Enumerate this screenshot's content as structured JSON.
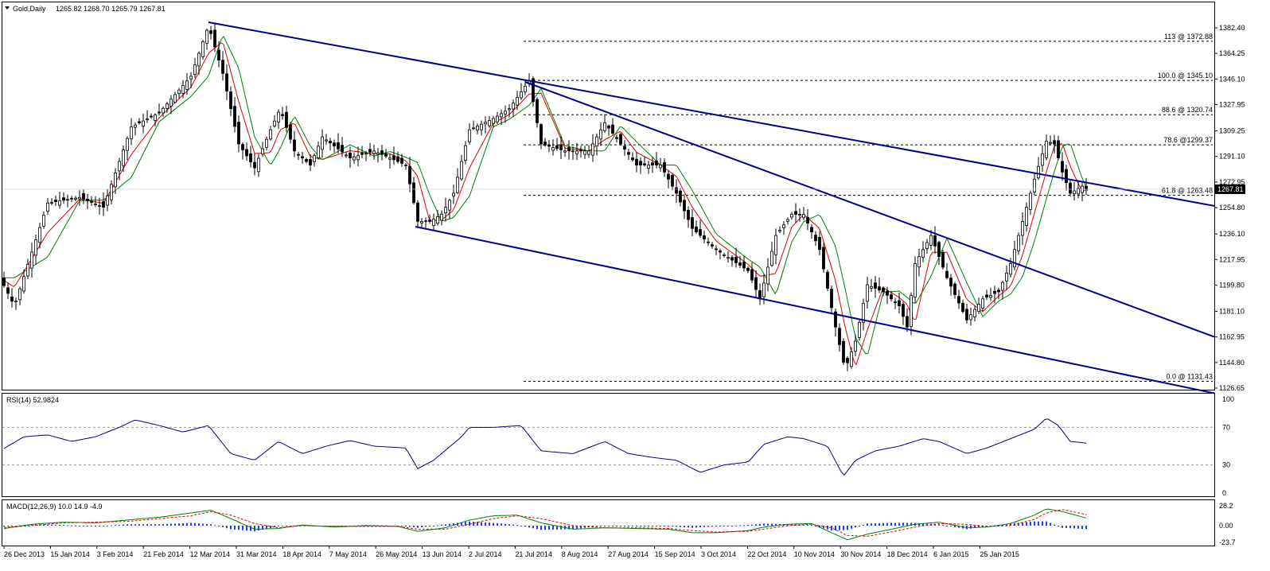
{
  "header": {
    "symbol_label": "Gold,Daily",
    "ohlc_label": "1265.82 1268.70 1265.79 1267.81"
  },
  "rsi_header": "RSI(14) 52.9824",
  "macd_header": "MACD(12,26,9) 10.0 14.9 -4.9",
  "chart_data": {
    "type": "candlestick",
    "price_axis": {
      "ticks": [
        "1382.40",
        "1364.25",
        "1346.10",
        "1327.95",
        "1309.25",
        "1291.10",
        "1272.95",
        "1254.80",
        "1236.10",
        "1217.95",
        "1199.80",
        "1181.10",
        "1162.95",
        "1144.80",
        "1126.65"
      ],
      "range": [
        1124,
        1390
      ]
    },
    "current_price": "1267.81",
    "rsi_axis": {
      "ticks": [
        "100",
        "70",
        "30",
        "0"
      ],
      "levels": [
        70,
        30
      ]
    },
    "macd_axis": {
      "ticks": [
        "28.2",
        "0.00",
        "-23.7"
      ],
      "range": [
        -23.7,
        28.2
      ]
    },
    "date_ticks": [
      "26 Dec 2013",
      "15 Jan 2014",
      "3 Feb 2014",
      "21 Feb 2014",
      "12 Mar 2014",
      "31 Mar 2014",
      "18 Apr 2014",
      "7 May 2014",
      "26 May 2014",
      "13 Jun 2014",
      "2 Jul 2014",
      "21 Jul 2014",
      "8 Aug 2014",
      "27 Aug 2014",
      "15 Sep 2014",
      "3 Oct 2014",
      "22 Oct 2014",
      "10 Nov 2014",
      "30 Nov 2014",
      "18 Dec 2014",
      "6 Jan 2015",
      "25 Jan 2015"
    ],
    "fib_levels": [
      {
        "label": "113 @ 1372.88",
        "price": 1372.88
      },
      {
        "label": "100.0 @ 1345.10",
        "price": 1345.1
      },
      {
        "label": "88.6 @ 1320.74",
        "price": 1320.74
      },
      {
        "label": "78.6 @1299.37",
        "price": 1299.37
      },
      {
        "label": "61.8 @ 1263.48",
        "price": 1263.48
      },
      {
        "label": "0.0 @ 1131.43",
        "price": 1131.43
      }
    ],
    "trendlines": [
      {
        "from": [
          12,
          1388
        ],
        "to": [
          1568,
          1256
        ]
      },
      {
        "from": [
          110,
          1345
        ],
        "to": [
          1568,
          1163
        ]
      },
      {
        "from": [
          84,
          1240
        ],
        "to": [
          1568,
          1123
        ]
      }
    ],
    "price_anchors": [
      [
        0,
        1205
      ],
      [
        18,
        1185
      ],
      [
        60,
        1258
      ],
      [
        100,
        1262
      ],
      [
        130,
        1255
      ],
      [
        165,
        1312
      ],
      [
        200,
        1322
      ],
      [
        240,
        1348
      ],
      [
        262,
        1384
      ],
      [
        280,
        1350
      ],
      [
        300,
        1300
      ],
      [
        320,
        1283
      ],
      [
        340,
        1310
      ],
      [
        352,
        1325
      ],
      [
        370,
        1295
      ],
      [
        390,
        1285
      ],
      [
        405,
        1305
      ],
      [
        440,
        1290
      ],
      [
        470,
        1295
      ],
      [
        490,
        1290
      ],
      [
        510,
        1285
      ],
      [
        525,
        1245
      ],
      [
        540,
        1245
      ],
      [
        555,
        1250
      ],
      [
        570,
        1265
      ],
      [
        590,
        1310
      ],
      [
        620,
        1318
      ],
      [
        640,
        1325
      ],
      [
        665,
        1345
      ],
      [
        680,
        1300
      ],
      [
        710,
        1295
      ],
      [
        740,
        1295
      ],
      [
        760,
        1315
      ],
      [
        780,
        1300
      ],
      [
        800,
        1285
      ],
      [
        830,
        1285
      ],
      [
        850,
        1265
      ],
      [
        870,
        1240
      ],
      [
        900,
        1225
      ],
      [
        940,
        1210
      ],
      [
        955,
        1190
      ],
      [
        975,
        1235
      ],
      [
        995,
        1250
      ],
      [
        1010,
        1250
      ],
      [
        1030,
        1225
      ],
      [
        1050,
        1170
      ],
      [
        1062,
        1140
      ],
      [
        1075,
        1160
      ],
      [
        1090,
        1200
      ],
      [
        1110,
        1195
      ],
      [
        1130,
        1185
      ],
      [
        1140,
        1170
      ],
      [
        1150,
        1215
      ],
      [
        1170,
        1235
      ],
      [
        1190,
        1205
      ],
      [
        1215,
        1175
      ],
      [
        1235,
        1190
      ],
      [
        1255,
        1195
      ],
      [
        1270,
        1215
      ],
      [
        1285,
        1245
      ],
      [
        1300,
        1275
      ],
      [
        1315,
        1302
      ],
      [
        1325,
        1300
      ],
      [
        1335,
        1280
      ],
      [
        1345,
        1265
      ],
      [
        1360,
        1270
      ],
      [
        1368,
        1267
      ]
    ],
    "rsi_anchors": [
      [
        0,
        45
      ],
      [
        30,
        60
      ],
      [
        60,
        62
      ],
      [
        90,
        55
      ],
      [
        120,
        60
      ],
      [
        150,
        70
      ],
      [
        170,
        78
      ],
      [
        200,
        72
      ],
      [
        230,
        65
      ],
      [
        262,
        72
      ],
      [
        290,
        42
      ],
      [
        320,
        35
      ],
      [
        350,
        55
      ],
      [
        380,
        42
      ],
      [
        410,
        50
      ],
      [
        440,
        56
      ],
      [
        470,
        50
      ],
      [
        510,
        48
      ],
      [
        525,
        26
      ],
      [
        545,
        35
      ],
      [
        580,
        60
      ],
      [
        590,
        70
      ],
      [
        620,
        70
      ],
      [
        655,
        72
      ],
      [
        680,
        45
      ],
      [
        720,
        42
      ],
      [
        760,
        55
      ],
      [
        790,
        42
      ],
      [
        820,
        38
      ],
      [
        850,
        35
      ],
      [
        880,
        22
      ],
      [
        910,
        30
      ],
      [
        940,
        33
      ],
      [
        960,
        52
      ],
      [
        990,
        60
      ],
      [
        1010,
        58
      ],
      [
        1040,
        50
      ],
      [
        1060,
        18
      ],
      [
        1075,
        35
      ],
      [
        1100,
        45
      ],
      [
        1130,
        50
      ],
      [
        1160,
        58
      ],
      [
        1180,
        55
      ],
      [
        1215,
        42
      ],
      [
        1240,
        48
      ],
      [
        1270,
        58
      ],
      [
        1300,
        68
      ],
      [
        1315,
        80
      ],
      [
        1330,
        72
      ],
      [
        1345,
        55
      ],
      [
        1368,
        53
      ]
    ],
    "macd_anchors": [
      [
        0,
        -5
      ],
      [
        40,
        2
      ],
      [
        80,
        5
      ],
      [
        120,
        4
      ],
      [
        160,
        8
      ],
      [
        200,
        12
      ],
      [
        240,
        18
      ],
      [
        265,
        22
      ],
      [
        290,
        10
      ],
      [
        320,
        -5
      ],
      [
        350,
        -4
      ],
      [
        380,
        1
      ],
      [
        420,
        -2
      ],
      [
        460,
        0
      ],
      [
        500,
        -1
      ],
      [
        525,
        -8
      ],
      [
        560,
        -3
      ],
      [
        590,
        8
      ],
      [
        620,
        14
      ],
      [
        650,
        15
      ],
      [
        680,
        4
      ],
      [
        720,
        -5
      ],
      [
        760,
        -3
      ],
      [
        800,
        -4
      ],
      [
        840,
        -5
      ],
      [
        870,
        -10
      ],
      [
        900,
        -10
      ],
      [
        940,
        -7
      ],
      [
        960,
        -2
      ],
      [
        990,
        2
      ],
      [
        1020,
        3
      ],
      [
        1045,
        -10
      ],
      [
        1065,
        -20
      ],
      [
        1090,
        -12
      ],
      [
        1120,
        -5
      ],
      [
        1150,
        2
      ],
      [
        1180,
        5
      ],
      [
        1215,
        -3
      ],
      [
        1240,
        -2
      ],
      [
        1270,
        3
      ],
      [
        1300,
        15
      ],
      [
        1315,
        24
      ],
      [
        1335,
        20
      ],
      [
        1368,
        10
      ]
    ],
    "signal_anchors": [
      [
        0,
        -3
      ],
      [
        40,
        0
      ],
      [
        80,
        4
      ],
      [
        120,
        5
      ],
      [
        160,
        6
      ],
      [
        200,
        10
      ],
      [
        240,
        14
      ],
      [
        265,
        20
      ],
      [
        290,
        15
      ],
      [
        320,
        3
      ],
      [
        350,
        -3
      ],
      [
        380,
        0
      ],
      [
        420,
        -1
      ],
      [
        460,
        -1
      ],
      [
        500,
        -1
      ],
      [
        525,
        -5
      ],
      [
        560,
        -5
      ],
      [
        590,
        2
      ],
      [
        620,
        10
      ],
      [
        650,
        14
      ],
      [
        680,
        10
      ],
      [
        720,
        0
      ],
      [
        760,
        -3
      ],
      [
        800,
        -3
      ],
      [
        840,
        -4
      ],
      [
        870,
        -7
      ],
      [
        900,
        -9
      ],
      [
        940,
        -8
      ],
      [
        960,
        -5
      ],
      [
        990,
        0
      ],
      [
        1020,
        2
      ],
      [
        1045,
        -3
      ],
      [
        1065,
        -14
      ],
      [
        1090,
        -15
      ],
      [
        1120,
        -9
      ],
      [
        1150,
        -2
      ],
      [
        1180,
        3
      ],
      [
        1215,
        2
      ],
      [
        1240,
        -1
      ],
      [
        1270,
        0
      ],
      [
        1300,
        9
      ],
      [
        1315,
        18
      ],
      [
        1335,
        23
      ],
      [
        1368,
        15
      ]
    ]
  }
}
